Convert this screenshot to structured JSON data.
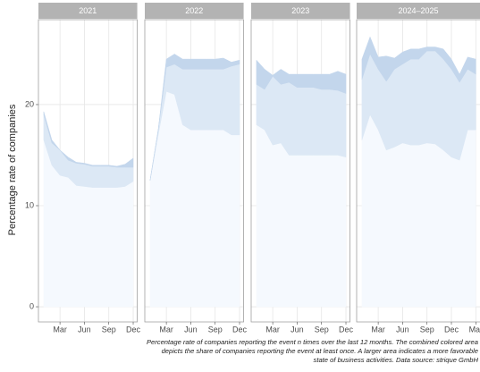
{
  "chart_data": {
    "type": "area",
    "stacked": true,
    "y_label": "Percentage rate of companies",
    "caption": [
      "Percentage rate of companies reporting the event n times over the last 12 months. The combined colored area",
      "depicts the share of companies reporting the event at least once. A larger area indicates a more favorable",
      "state of business activities. Data source: strique GmbH"
    ],
    "ylim": [
      -1.5,
      28.4
    ],
    "yticks": [
      0,
      10,
      20
    ],
    "grid": true,
    "facets": [
      {
        "title": "2021",
        "x": [
          1,
          2,
          3,
          4,
          5,
          6,
          7,
          8,
          9,
          10,
          11,
          12
        ],
        "xlim": [
          0.35,
          12.5
        ],
        "xticks": [
          {
            "value": 3,
            "label": "Mar"
          },
          {
            "value": 6,
            "label": "Jun"
          },
          {
            "value": 9,
            "label": "Sep"
          },
          {
            "value": 12,
            "label": "Dec"
          }
        ],
        "series": [
          {
            "color": "#f5f9fe",
            "values": [
              16.5,
              14,
              13,
              12.8,
              12,
              11.9,
              11.8,
              11.8,
              11.8,
              11.8,
              11.9,
              12.4
            ]
          },
          {
            "color": "#dce8f5",
            "values": [
              2.5,
              2.2,
              2.5,
              1.7,
              2.2,
              2.2,
              2.1,
              2.1,
              2.1,
              2,
              1.9,
              1.4
            ]
          },
          {
            "color": "#c3d6ec",
            "values": [
              0.3,
              0.3,
              0,
              0.3,
              0.1,
              0.1,
              0.1,
              0.1,
              0.1,
              0.1,
              0.3,
              0.9
            ]
          }
        ]
      },
      {
        "title": "2022",
        "x": [
          1,
          2,
          3,
          4,
          5,
          6,
          7,
          8,
          9,
          10,
          11,
          12
        ],
        "xlim": [
          0.35,
          12.5
        ],
        "xticks": [
          {
            "value": 3,
            "label": "Mar"
          },
          {
            "value": 6,
            "label": "Jun"
          },
          {
            "value": 9,
            "label": "Sep"
          },
          {
            "value": 12,
            "label": "Dec"
          }
        ],
        "series": [
          {
            "color": "#f5f9fe",
            "values": [
              12.5,
              17,
              21.3,
              21,
              18,
              17.5,
              17.5,
              17.5,
              17.5,
              17.5,
              17,
              17
            ]
          },
          {
            "color": "#dce8f5",
            "values": [
              0,
              0.5,
              2.4,
              3,
              5.5,
              6,
              6,
              6,
              6,
              6,
              6.8,
              7
            ]
          },
          {
            "color": "#c3d6ec",
            "values": [
              0,
              0,
              0.8,
              1,
              1,
              1,
              1,
              1,
              1,
              1.1,
              0.4,
              0.4
            ]
          }
        ]
      },
      {
        "title": "2023",
        "x": [
          1,
          2,
          3,
          4,
          5,
          6,
          7,
          8,
          9,
          10,
          11,
          12
        ],
        "xlim": [
          0.35,
          12.5
        ],
        "xticks": [
          {
            "value": 3,
            "label": "Mar"
          },
          {
            "value": 6,
            "label": "Jun"
          },
          {
            "value": 9,
            "label": "Sep"
          },
          {
            "value": 12,
            "label": "Dec"
          }
        ],
        "series": [
          {
            "color": "#f5f9fe",
            "values": [
              18,
              17.5,
              16,
              16.2,
              15,
              15,
              15,
              15,
              15,
              15,
              15,
              14.8
            ]
          },
          {
            "color": "#dce8f5",
            "values": [
              4,
              4,
              6.8,
              5.8,
              7.2,
              6.7,
              6.7,
              6.7,
              6.5,
              6.5,
              6.4,
              6.3
            ]
          },
          {
            "color": "#c3d6ec",
            "values": [
              2.4,
              2,
              0.1,
              1.5,
              0.8,
              1.3,
              1.3,
              1.3,
              1.5,
              1.5,
              1.9,
              1.9
            ]
          }
        ]
      },
      {
        "title": "2024–2025",
        "x": [
          1,
          2,
          3,
          4,
          5,
          6,
          7,
          8,
          9,
          10,
          11,
          12,
          13,
          14,
          15
        ],
        "xlim": [
          0.35,
          15.7
        ],
        "xticks": [
          {
            "value": 3,
            "label": "Mar"
          },
          {
            "value": 6,
            "label": "Jun"
          },
          {
            "value": 9,
            "label": "Sep"
          },
          {
            "value": 12,
            "label": "Dec"
          },
          {
            "value": 15,
            "label": "Mar"
          }
        ],
        "series": [
          {
            "color": "#f5f9fe",
            "values": [
              16.5,
              19,
              17.5,
              15.5,
              15.8,
              16.2,
              16,
              16,
              16.2,
              16.1,
              15.5,
              14.8,
              14.5,
              17.5,
              17.5
            ]
          },
          {
            "color": "#dce8f5",
            "values": [
              6,
              6,
              6,
              6.8,
              7.7,
              7.8,
              8.5,
              8.5,
              9.1,
              9.2,
              9,
              8.7,
              7.7,
              6,
              5.5
            ]
          },
          {
            "color": "#c3d6ec",
            "values": [
              2,
              1.7,
              1.2,
              2.5,
              1.1,
              1.2,
              1,
              1,
              0.4,
              0.4,
              1,
              1,
              0.8,
              1.2,
              1.5
            ]
          }
        ]
      }
    ]
  }
}
